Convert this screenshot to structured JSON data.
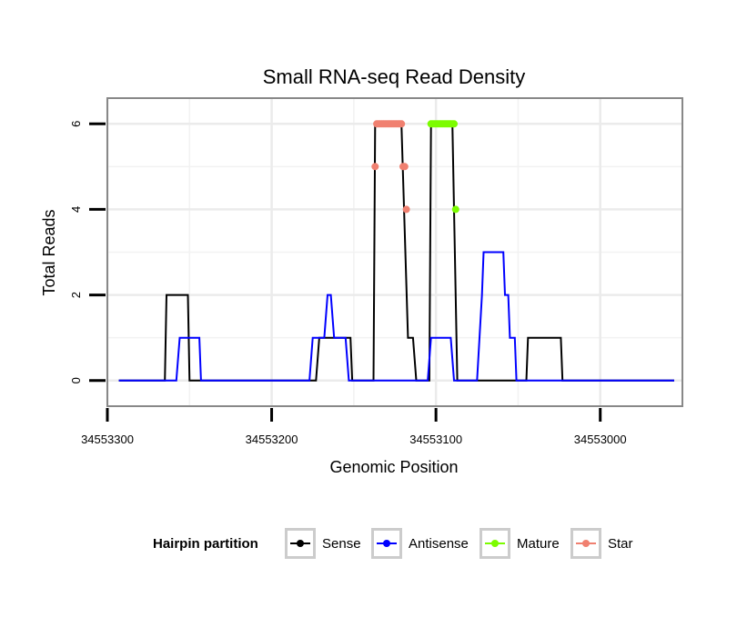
{
  "chart_data": {
    "type": "line",
    "title": "Small RNA-seq Read Density",
    "xlabel": "Genomic Position",
    "ylabel": "Total Reads",
    "xlim": [
      34553300,
      34552950
    ],
    "x_reversed": true,
    "ylim": [
      -0.6,
      6.6
    ],
    "xticks": [
      34553300,
      34553200,
      34553100,
      34553000
    ],
    "xtick_labels": [
      "34553300",
      "34553200",
      "34553100",
      "34553000"
    ],
    "yticks": [
      0,
      2,
      4,
      6
    ],
    "ytick_labels": [
      "0",
      "2",
      "4",
      "6"
    ],
    "grid": true,
    "series": [
      {
        "name": "Sense",
        "kind": "line",
        "color": "#000000",
        "points": [
          [
            34553293,
            0
          ],
          [
            34553265,
            0
          ],
          [
            34553264,
            2
          ],
          [
            34553251,
            2
          ],
          [
            34553250,
            0
          ],
          [
            34553173,
            0
          ],
          [
            34553171,
            1
          ],
          [
            34553152,
            1
          ],
          [
            34553151,
            0
          ],
          [
            34553138,
            0
          ],
          [
            34553137,
            6
          ],
          [
            34553121,
            6
          ],
          [
            34553117,
            1
          ],
          [
            34553114,
            1
          ],
          [
            34553112,
            0
          ],
          [
            34553104,
            0
          ],
          [
            34553103,
            6
          ],
          [
            34553090,
            6
          ],
          [
            34553087,
            0
          ],
          [
            34553045,
            0
          ],
          [
            34553044,
            1
          ],
          [
            34553024,
            1
          ],
          [
            34553023,
            0
          ],
          [
            34552955,
            0
          ]
        ]
      },
      {
        "name": "Antisense",
        "kind": "line",
        "color": "#0000FF",
        "points": [
          [
            34553293,
            0
          ],
          [
            34553258,
            0
          ],
          [
            34553256,
            1
          ],
          [
            34553244,
            1
          ],
          [
            34553243,
            0
          ],
          [
            34553177,
            0
          ],
          [
            34553175,
            1
          ],
          [
            34553168,
            1
          ],
          [
            34553166,
            2
          ],
          [
            34553164,
            2
          ],
          [
            34553162,
            1
          ],
          [
            34553155,
            1
          ],
          [
            34553153,
            0
          ],
          [
            34553105,
            0
          ],
          [
            34553103,
            1
          ],
          [
            34553091,
            1
          ],
          [
            34553089,
            0
          ],
          [
            34553075,
            0
          ],
          [
            34553072,
            2
          ],
          [
            34553071,
            3
          ],
          [
            34553059,
            3
          ],
          [
            34553058,
            2
          ],
          [
            34553056,
            2
          ],
          [
            34553055,
            1
          ],
          [
            34553052,
            1
          ],
          [
            34553051,
            0
          ],
          [
            34552955,
            0
          ]
        ]
      },
      {
        "name": "Mature",
        "kind": "points",
        "color": "#7CFC00",
        "points": [
          [
            34553103,
            6
          ],
          [
            34553102,
            6
          ],
          [
            34553101,
            6
          ],
          [
            34553100,
            6
          ],
          [
            34553099,
            6
          ],
          [
            34553098,
            6
          ],
          [
            34553097,
            6
          ],
          [
            34553096,
            6
          ],
          [
            34553095,
            6
          ],
          [
            34553094,
            6
          ],
          [
            34553093,
            6
          ],
          [
            34553092,
            6
          ],
          [
            34553091,
            6
          ],
          [
            34553090,
            6
          ],
          [
            34553089,
            6
          ],
          [
            34553088,
            4
          ]
        ]
      },
      {
        "name": "Star",
        "kind": "points",
        "color": "#F08070",
        "points": [
          [
            34553137,
            5
          ],
          [
            34553136,
            6
          ],
          [
            34553135,
            6
          ],
          [
            34553134,
            6
          ],
          [
            34553133,
            6
          ],
          [
            34553132,
            6
          ],
          [
            34553131,
            6
          ],
          [
            34553130,
            6
          ],
          [
            34553129,
            6
          ],
          [
            34553128,
            6
          ],
          [
            34553127,
            6
          ],
          [
            34553126,
            6
          ],
          [
            34553125,
            6
          ],
          [
            34553124,
            6
          ],
          [
            34553123,
            6
          ],
          [
            34553122,
            6
          ],
          [
            34553121,
            6
          ],
          [
            34553120,
            5
          ],
          [
            34553119,
            5
          ],
          [
            34553118,
            4
          ]
        ]
      }
    ],
    "legend": {
      "title": "Hairpin partition",
      "position": "bottom",
      "entries": [
        {
          "label": "Sense",
          "color": "#000000"
        },
        {
          "label": "Antisense",
          "color": "#0000FF"
        },
        {
          "label": "Mature",
          "color": "#7CFC00"
        },
        {
          "label": "Star",
          "color": "#F08070"
        }
      ]
    }
  }
}
